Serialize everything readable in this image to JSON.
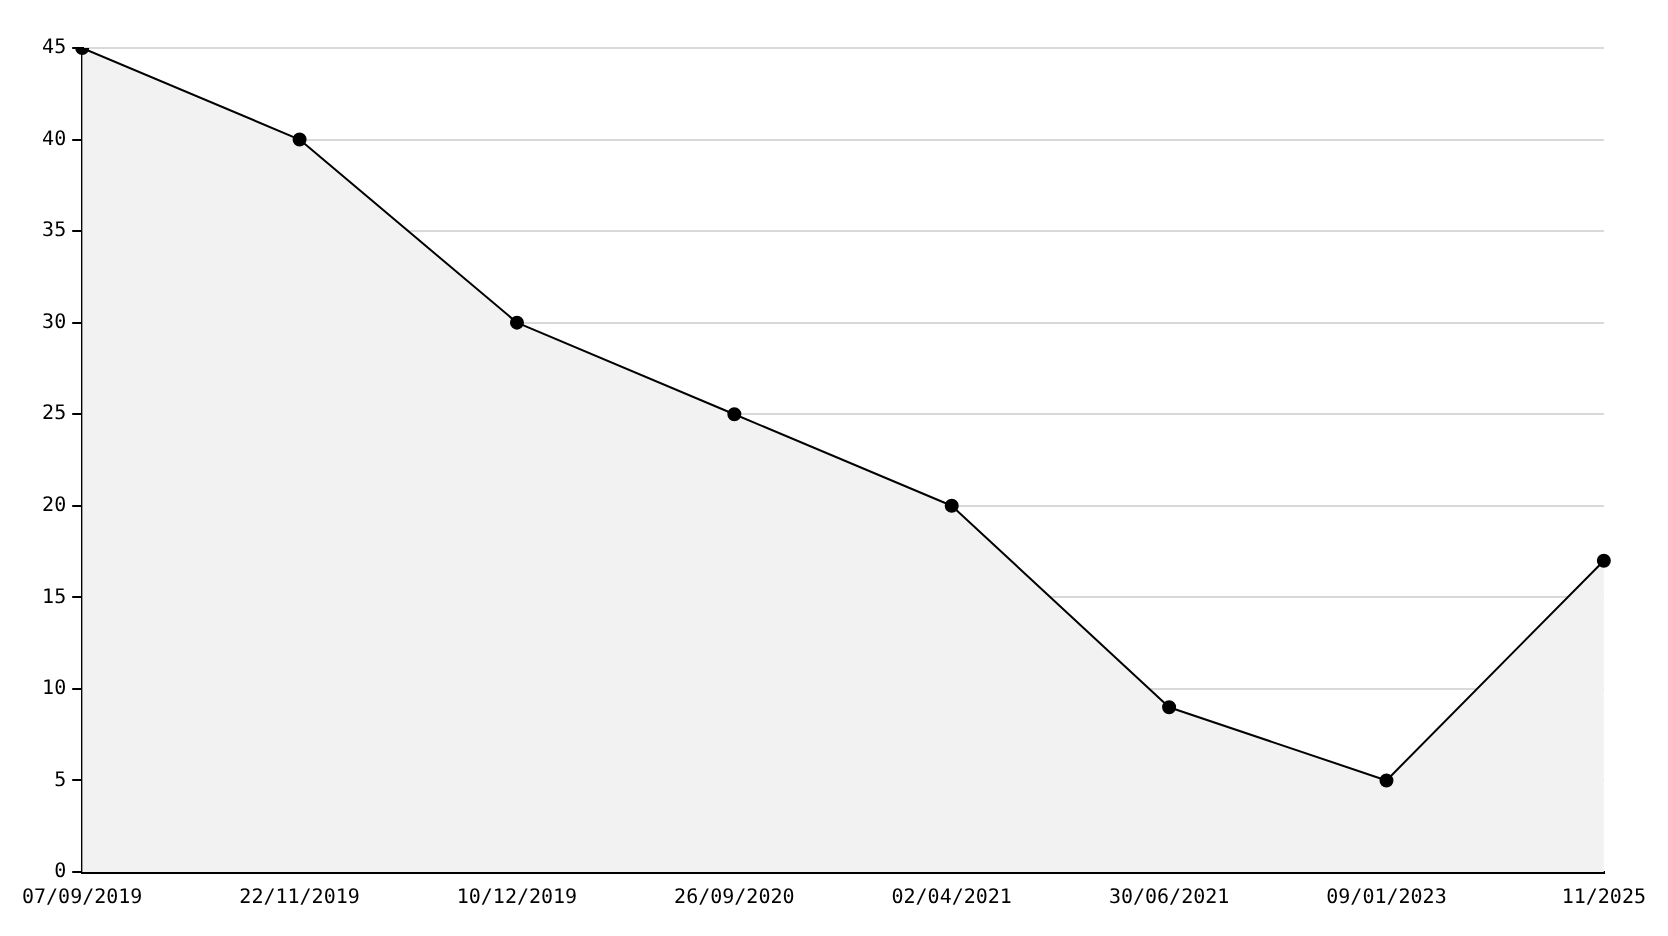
{
  "chart_data": {
    "type": "area",
    "categories": [
      "07/09/2019",
      "22/11/2019",
      "10/12/2019",
      "26/09/2020",
      "02/04/2021",
      "30/06/2021",
      "09/01/2023",
      "11/2025"
    ],
    "series": [
      {
        "color": "#000000",
        "values": [
          45,
          40,
          30,
          25,
          20,
          9,
          5,
          17
        ]
      }
    ],
    "ylim": [
      0,
      45
    ],
    "yticks": [
      0,
      5,
      10,
      15,
      20,
      25,
      30,
      35,
      40,
      45
    ],
    "grid": "y",
    "legend": false,
    "marker": "circle",
    "line_style": "solid"
  }
}
